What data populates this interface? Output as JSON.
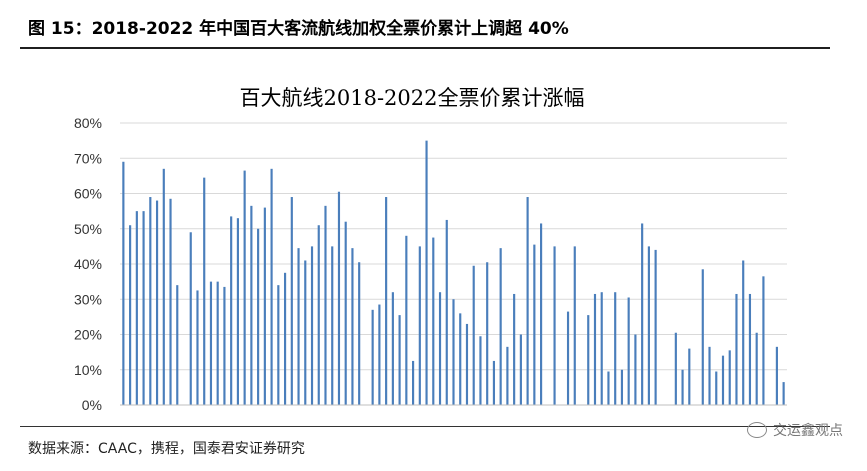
{
  "figure": {
    "title": "图 15：2018-2022 年中国百大客流航线加权全票价累计上调超 40%",
    "source": "数据来源：CAAC，携程，国泰君安证券研究",
    "watermark": "交运鑫观点",
    "watermark_icon": "wechat-icon"
  },
  "chart_data": {
    "type": "bar",
    "title": "百大航线2018-2022全票价累计涨幅",
    "xlabel": "",
    "ylabel": "",
    "ylim": [
      0,
      80
    ],
    "yticks": [
      "0%",
      "10%",
      "20%",
      "30%",
      "40%",
      "50%",
      "60%",
      "70%",
      "80%"
    ],
    "grid": true,
    "bar_color": "#4a7ebb",
    "values": [
      69,
      51,
      55,
      55,
      59,
      58,
      67,
      58.5,
      34,
      0,
      49,
      32.5,
      64.5,
      35,
      35,
      33.5,
      53.5,
      53,
      66.5,
      56.5,
      50,
      56,
      67,
      34,
      37.5,
      59,
      44.5,
      41,
      45,
      51,
      56.5,
      45,
      60.5,
      52,
      44.5,
      40.5,
      0,
      27,
      28.5,
      59,
      32,
      25.5,
      48,
      12.5,
      45,
      75,
      47.5,
      32,
      52.5,
      30,
      26,
      23,
      39.5,
      19.5,
      40.5,
      12.5,
      44.5,
      16.5,
      31.5,
      20,
      59,
      45.5,
      51.5,
      0,
      45,
      0,
      26.5,
      45,
      0,
      25.5,
      31.5,
      32,
      9.5,
      32,
      10,
      30.5,
      20,
      51.5,
      45,
      44,
      0,
      0,
      20.5,
      10,
      16,
      0,
      38.5,
      16.5,
      9.5,
      14,
      15.5,
      31.5,
      41,
      31.5,
      20.5,
      36.5,
      0,
      16.5,
      6.5
    ]
  }
}
